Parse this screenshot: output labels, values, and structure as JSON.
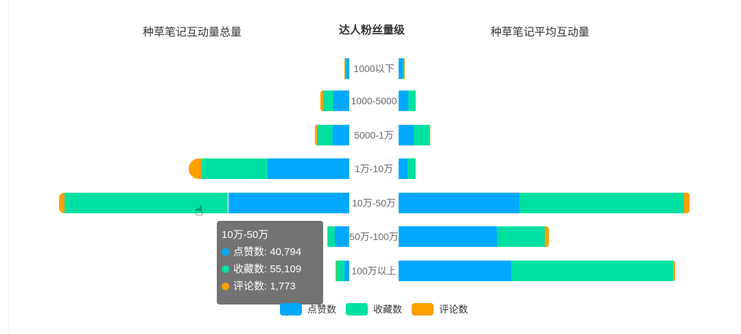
{
  "chart_data": [
    {
      "type": "bar",
      "orientation": "horizontal",
      "stacked": true,
      "direction": "right-to-left",
      "title": "种草笔记互动量总量",
      "categories": [
        "1000以下",
        "1000-5000",
        "5000-1万",
        "1万-10万",
        "10万-50万",
        "50万-100万",
        "100万以上"
      ],
      "series": [
        {
          "name": "点赞数",
          "values": [
            900,
            5300,
            5500,
            27400,
            40794,
            4800,
            1600
          ]
        },
        {
          "name": "收藏数",
          "values": [
            700,
            3450,
            5300,
            22300,
            55109,
            2300,
            3000
          ]
        },
        {
          "name": "评论数",
          "values": [
            80,
            900,
            700,
            4400,
            1773,
            400,
            30
          ]
        }
      ],
      "xlim": [
        0,
        98000
      ]
    },
    {
      "type": "bar",
      "orientation": "horizontal",
      "stacked": true,
      "direction": "left-to-right",
      "title": "种草笔记平均互动量",
      "categories": [
        "1000以下",
        "1000-5000",
        "5000-1万",
        "1万-10万",
        "10万-50万",
        "50万-100万",
        "100万以上"
      ],
      "series": [
        {
          "name": "点赞数",
          "values": [
            60,
            140,
            220,
            130,
            1760,
            1430,
            1640
          ]
        },
        {
          "name": "收藏数",
          "values": [
            20,
            100,
            230,
            110,
            2400,
            700,
            2360
          ]
        },
        {
          "name": "评论数",
          "values": [
            5,
            10,
            10,
            10,
            80,
            60,
            30
          ]
        }
      ],
      "xlim": [
        0,
        4240
      ]
    }
  ],
  "center_title": "达人粉丝量级",
  "colors": [
    "#00a8ff",
    "#00e0a0",
    "#ff9f00"
  ],
  "legend": [
    "点赞数",
    "收藏数",
    "评论数"
  ],
  "tooltip": {
    "title": "10万-50万",
    "rows": [
      {
        "label": "点赞数: 40,794"
      },
      {
        "label": "收藏数: 55,109"
      },
      {
        "label": "评论数: 1,773"
      }
    ]
  }
}
